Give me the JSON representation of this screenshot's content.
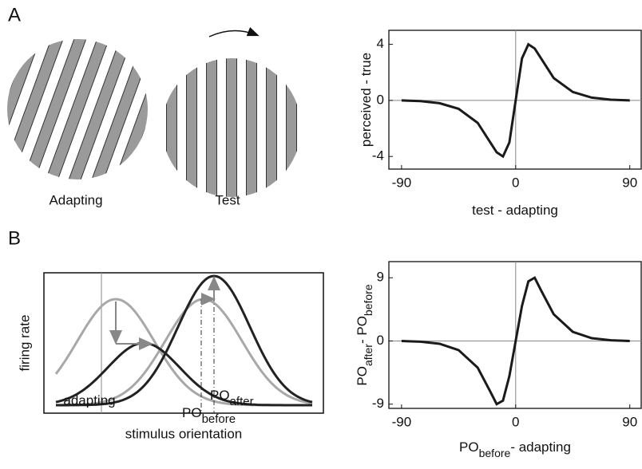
{
  "panels": {
    "a": "A",
    "b": "B"
  },
  "gratings": {
    "adapting": "Adapting",
    "test": "Test"
  },
  "tuning": {
    "ylabel": "firing rate",
    "adapting": "adapting",
    "po_before": [
      "PO",
      "before"
    ],
    "po_after": [
      "PO",
      "after"
    ],
    "xlabel": "stimulus orientation"
  },
  "chart_data": [
    {
      "type": "line",
      "color": "#1a1a1a",
      "x": [
        -90,
        -75,
        -60,
        -45,
        -30,
        -20,
        -15,
        -10,
        -5,
        0,
        5,
        10,
        15,
        20,
        30,
        45,
        60,
        75,
        90
      ],
      "values": [
        0,
        -0.05,
        -0.2,
        -0.6,
        -1.6,
        -3,
        -3.7,
        -4,
        -3,
        0,
        3,
        4,
        3.7,
        3,
        1.6,
        0.6,
        0.2,
        0.05,
        0
      ],
      "xlim": [
        -100,
        99
      ],
      "ylim": [
        -4.9,
        5
      ],
      "xticks": [
        -90,
        0,
        90
      ],
      "yticks": [
        -4,
        0,
        4
      ],
      "xlabel": [
        "test - adapting"
      ],
      "ylabel": [
        "perceived - true"
      ]
    },
    {
      "type": "line",
      "color": "#1a1a1a",
      "x": [
        -90,
        -75,
        -60,
        -45,
        -30,
        -20,
        -15,
        -10,
        -5,
        0,
        5,
        10,
        15,
        20,
        30,
        45,
        60,
        75,
        90
      ],
      "values": [
        0,
        -0.1,
        -0.4,
        -1.3,
        -3.8,
        -7.2,
        -9,
        -8.5,
        -5,
        0,
        5,
        8.5,
        9,
        7.2,
        3.8,
        1.3,
        0.4,
        0.1,
        0
      ],
      "xlim": [
        -100,
        99
      ],
      "ylim": [
        -9.6,
        11.3
      ],
      "xticks": [
        -90,
        0,
        90
      ],
      "yticks": [
        -9,
        0,
        9
      ],
      "xlabel": [
        "PO",
        "before",
        "- adapting"
      ],
      "ylabel": [
        "PO",
        "after",
        "- PO",
        "before"
      ]
    }
  ]
}
